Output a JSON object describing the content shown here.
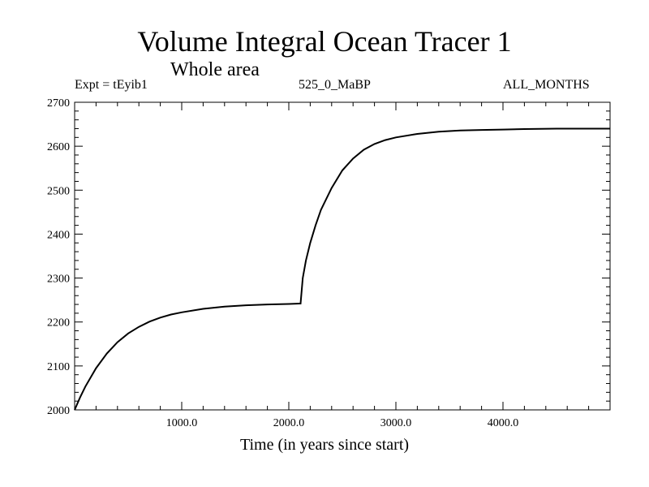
{
  "chart_data": {
    "type": "line",
    "title": "Volume Integral Ocean Tracer 1",
    "subtitle": "Whole area",
    "annotations": {
      "left": "Expt = tEyib1",
      "center": "525_0_MaBP",
      "right": "ALL_MONTHS"
    },
    "xlabel": "Time (in years since start)",
    "ylabel": "",
    "xlim": [
      0,
      5000
    ],
    "ylim": [
      2000,
      2700
    ],
    "x_ticks": [
      1000,
      2000,
      3000,
      4000
    ],
    "x_tick_labels": [
      "1000.0",
      "2000.0",
      "3000.0",
      "4000.0"
    ],
    "y_ticks": [
      2000,
      2100,
      2200,
      2300,
      2400,
      2500,
      2600,
      2700
    ],
    "y_tick_labels": [
      "2000",
      "2100",
      "2200",
      "2300",
      "2400",
      "2500",
      "2600",
      "2700"
    ],
    "grid": false,
    "line_color": "#000000",
    "series": [
      {
        "x": [
          0,
          50,
          100,
          200,
          300,
          400,
          500,
          600,
          700,
          800,
          900,
          1000,
          1200,
          1400,
          1600,
          1800,
          2000,
          2100,
          2110,
          2130,
          2160,
          2200,
          2250,
          2300,
          2400,
          2500,
          2600,
          2700,
          2800,
          2900,
          3000,
          3200,
          3400,
          3600,
          3800,
          4000,
          4200,
          4500,
          4800,
          5000
        ],
        "values": [
          2000,
          2028,
          2053,
          2095,
          2128,
          2154,
          2174,
          2189,
          2201,
          2210,
          2217,
          2222,
          2230,
          2235,
          2238,
          2240,
          2241,
          2242,
          2242,
          2300,
          2340,
          2380,
          2420,
          2455,
          2505,
          2545,
          2572,
          2592,
          2605,
          2614,
          2620,
          2628,
          2633,
          2636,
          2637,
          2638,
          2639,
          2640,
          2640,
          2640
        ]
      }
    ]
  }
}
